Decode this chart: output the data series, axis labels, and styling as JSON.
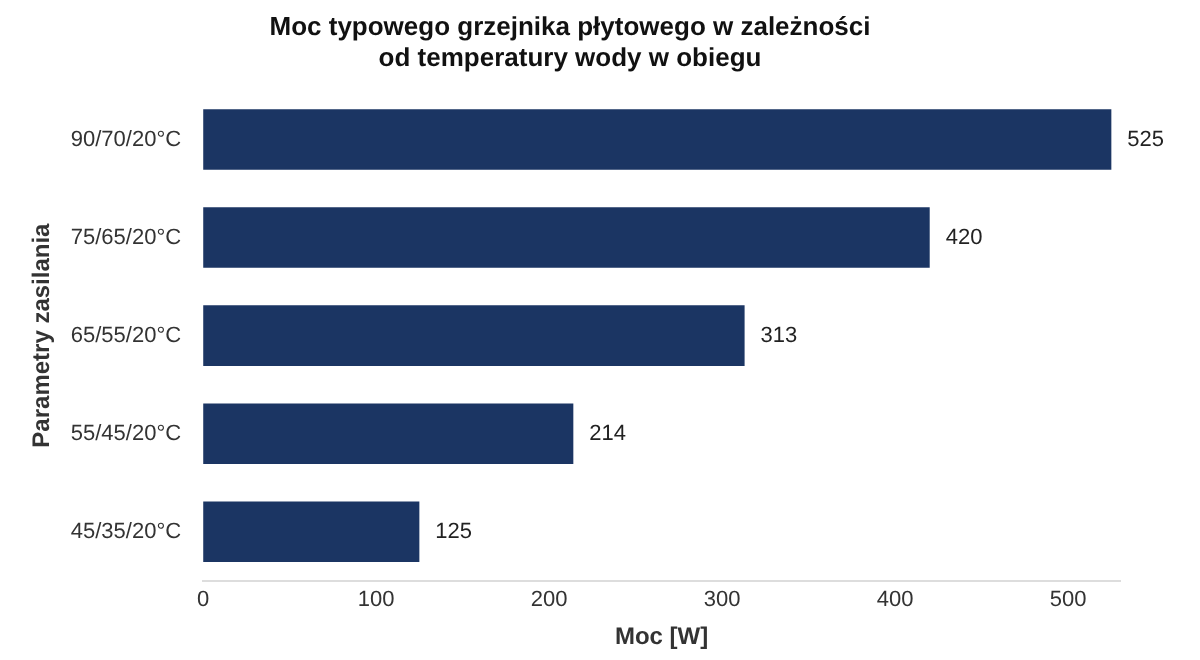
{
  "chart_data": {
    "type": "bar",
    "orientation": "horizontal",
    "title": "Moc typowego grzejnika płytowego w zależności\nod temperatury wody w obiegu",
    "xlabel": "Moc [W]",
    "ylabel": "Parametry zasilania",
    "categories": [
      "90/70/20°C",
      "75/65/20°C",
      "65/55/20°C",
      "55/45/20°C",
      "45/35/20°C"
    ],
    "values": [
      525,
      420,
      313,
      214,
      125
    ],
    "color": "#1b3563",
    "xlim": [
      0,
      530
    ],
    "xticks": [
      0,
      100,
      200,
      300,
      400,
      500
    ],
    "grid": false,
    "legend": false,
    "data_labels": true
  }
}
